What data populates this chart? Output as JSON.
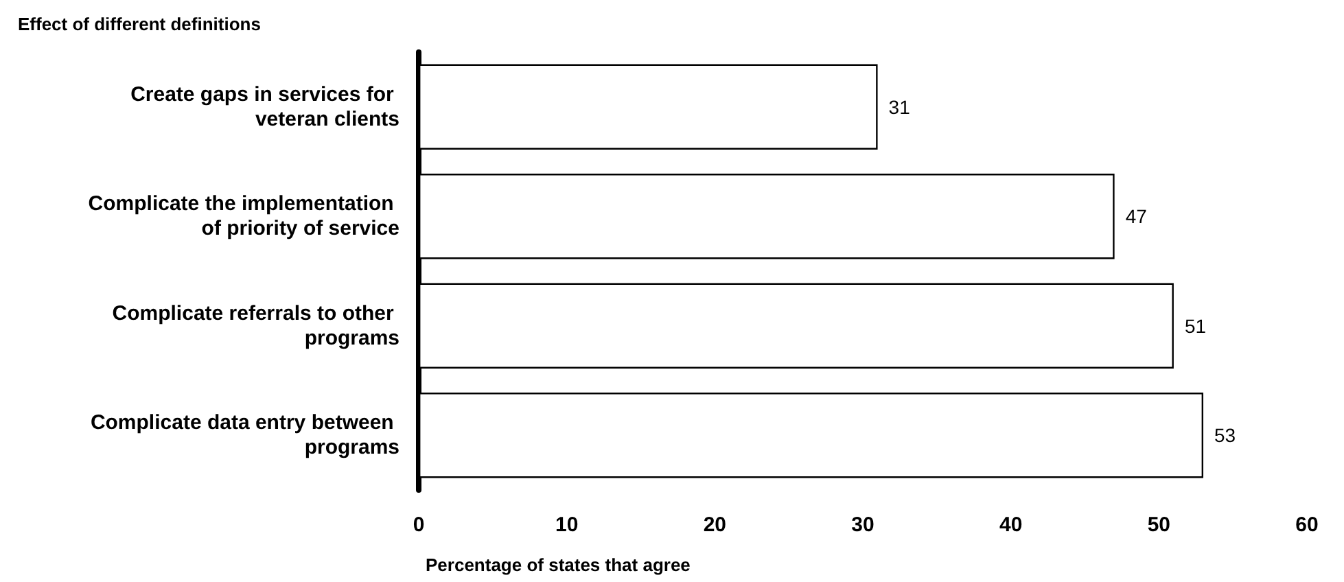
{
  "chart_data": {
    "type": "bar",
    "orientation": "horizontal",
    "title": "Effect of different definitions",
    "xlabel": "Percentage of states that agree",
    "categories": [
      "Create gaps in services for veteran clients",
      "Complicate the implementation of priority of service",
      "Complicate referrals to other programs",
      "Complicate data entry between programs"
    ],
    "values": [
      31,
      47,
      51,
      53
    ],
    "color": "#ffffff",
    "data_labels": true,
    "xlim": [
      0,
      60
    ],
    "xticks": [
      0,
      10,
      20,
      30,
      40,
      50,
      60
    ]
  }
}
